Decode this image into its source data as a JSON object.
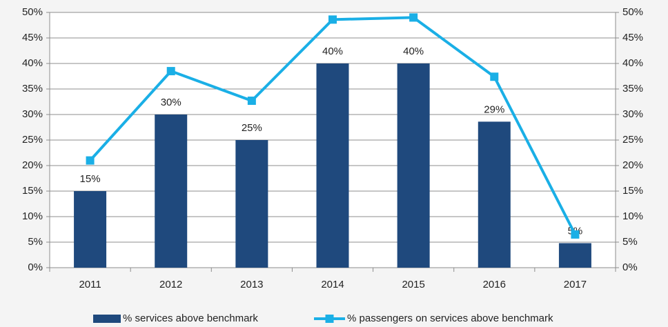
{
  "chart_data": {
    "type": "bar_line",
    "categories": [
      "2011",
      "2012",
      "2013",
      "2014",
      "2015",
      "2016",
      "2017"
    ],
    "series": [
      {
        "name": "% services above benchmark",
        "type": "bar",
        "color": "#1f497d",
        "values": [
          15,
          30,
          25,
          40,
          40,
          28.6,
          4.8
        ],
        "value_labels": [
          "15%",
          "30%",
          "25%",
          "40%",
          "40%",
          "29%",
          "5%"
        ]
      },
      {
        "name": "% passengers on services above benchmark",
        "type": "line",
        "axis": "y2",
        "color": "#1aafe6",
        "values": [
          21,
          38.5,
          32.7,
          48.6,
          49,
          37.4,
          6.5
        ]
      }
    ],
    "ylim": [
      0,
      50
    ],
    "yticks": [
      {
        "value": 0,
        "label": "0%"
      },
      {
        "value": 5,
        "label": "5%"
      },
      {
        "value": 10,
        "label": "10%"
      },
      {
        "value": 15,
        "label": "15%"
      },
      {
        "value": 20,
        "label": "20%"
      },
      {
        "value": 25,
        "label": "25%"
      },
      {
        "value": 30,
        "label": "30%"
      },
      {
        "value": 35,
        "label": "35%"
      },
      {
        "value": 40,
        "label": "40%"
      },
      {
        "value": 45,
        "label": "45%"
      },
      {
        "value": 50,
        "label": "50%"
      }
    ],
    "y2lim": [
      0,
      50
    ],
    "y2ticks": [
      {
        "value": 0,
        "label": "0%"
      },
      {
        "value": 5,
        "label": "5%"
      },
      {
        "value": 10,
        "label": "10%"
      },
      {
        "value": 15,
        "label": "15%"
      },
      {
        "value": 20,
        "label": "20%"
      },
      {
        "value": 25,
        "label": "25%"
      },
      {
        "value": 30,
        "label": "30%"
      },
      {
        "value": 35,
        "label": "35%"
      },
      {
        "value": 40,
        "label": "40%"
      },
      {
        "value": 45,
        "label": "45%"
      },
      {
        "value": 50,
        "label": "50%"
      }
    ],
    "grid": true,
    "legend": "bottom"
  }
}
